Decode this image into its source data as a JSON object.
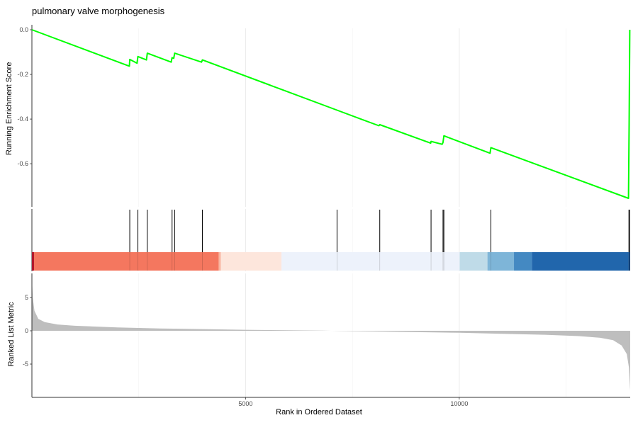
{
  "chart_data": {
    "type": "line",
    "title": "pulmonary valve morphogenesis",
    "xlabel": "Rank in Ordered Dataset",
    "ylabel_top": "Running Enrichment Score",
    "ylabel_bottom": "Ranked List Metric",
    "xlim": [
      0,
      14000
    ],
    "x_ticks": [
      5000,
      10000
    ],
    "x_tick_labels": [
      "5000",
      "10000"
    ],
    "es_ylim": [
      -0.8,
      0.0
    ],
    "es_y_ticks": [
      0.0,
      -0.2,
      -0.4,
      -0.6
    ],
    "es_y_tick_labels": [
      "0.0",
      "-0.2",
      "-0.4",
      "-0.6"
    ],
    "metric_ylim": [
      -9,
      8
    ],
    "metric_y_ticks": [
      5,
      0,
      -5
    ],
    "metric_y_tick_labels": [
      "5",
      "0",
      "-5"
    ],
    "line_color": "#00ff00",
    "es_points": [
      [
        0,
        0.0
      ],
      [
        2280,
        -0.163
      ],
      [
        2290,
        -0.133
      ],
      [
        2460,
        -0.15
      ],
      [
        2480,
        -0.12
      ],
      [
        2680,
        -0.135
      ],
      [
        2700,
        -0.105
      ],
      [
        3260,
        -0.145
      ],
      [
        3280,
        -0.125
      ],
      [
        3320,
        -0.128
      ],
      [
        3340,
        -0.105
      ],
      [
        3970,
        -0.145
      ],
      [
        3990,
        -0.135
      ],
      [
        7140,
        -0.36
      ],
      [
        8120,
        -0.43
      ],
      [
        8140,
        -0.425
      ],
      [
        9330,
        -0.508
      ],
      [
        9340,
        -0.5
      ],
      [
        9600,
        -0.513
      ],
      [
        9620,
        -0.505
      ],
      [
        9640,
        -0.475
      ],
      [
        10720,
        -0.553
      ],
      [
        10740,
        -0.528
      ],
      [
        13960,
        -0.755
      ],
      [
        13975,
        -0.42
      ],
      [
        13990,
        0.0
      ]
    ],
    "hits": [
      2290,
      2480,
      2700,
      3280,
      3340,
      3990,
      7140,
      8140,
      9340,
      9620,
      9640,
      10740,
      13970,
      13985
    ],
    "color_bands": [
      {
        "from": 0,
        "to": 50,
        "color": "#b2182b"
      },
      {
        "from": 50,
        "to": 4370,
        "color": "#f4775f"
      },
      {
        "from": 4370,
        "to": 4420,
        "color": "#f9b6a1"
      },
      {
        "from": 4420,
        "to": 5840,
        "color": "#fde6dc"
      },
      {
        "from": 5840,
        "to": 10010,
        "color": "#edf2fb"
      },
      {
        "from": 10010,
        "to": 10660,
        "color": "#bfdbe8"
      },
      {
        "from": 10660,
        "to": 11280,
        "color": "#7eb5d8"
      },
      {
        "from": 11280,
        "to": 11700,
        "color": "#4489c2"
      },
      {
        "from": 11700,
        "to": 13960,
        "color": "#2166ac"
      },
      {
        "from": 13960,
        "to": 14000,
        "color": "#1a4f8c"
      }
    ],
    "metric_points": [
      [
        0,
        8
      ],
      [
        20,
        5
      ],
      [
        60,
        3
      ],
      [
        150,
        1.8
      ],
      [
        300,
        1.3
      ],
      [
        600,
        0.95
      ],
      [
        1000,
        0.75
      ],
      [
        2000,
        0.5
      ],
      [
        3000,
        0.35
      ],
      [
        4000,
        0.25
      ],
      [
        5000,
        0.15
      ],
      [
        6000,
        0.08
      ],
      [
        6800,
        0.02
      ],
      [
        7000,
        0
      ],
      [
        7200,
        -0.03
      ],
      [
        8000,
        -0.1
      ],
      [
        9000,
        -0.2
      ],
      [
        10000,
        -0.3
      ],
      [
        11000,
        -0.45
      ],
      [
        12000,
        -0.6
      ],
      [
        12800,
        -0.8
      ],
      [
        13300,
        -1.05
      ],
      [
        13600,
        -1.4
      ],
      [
        13800,
        -2.2
      ],
      [
        13920,
        -3.5
      ],
      [
        13970,
        -5.5
      ],
      [
        14000,
        -9
      ]
    ]
  }
}
